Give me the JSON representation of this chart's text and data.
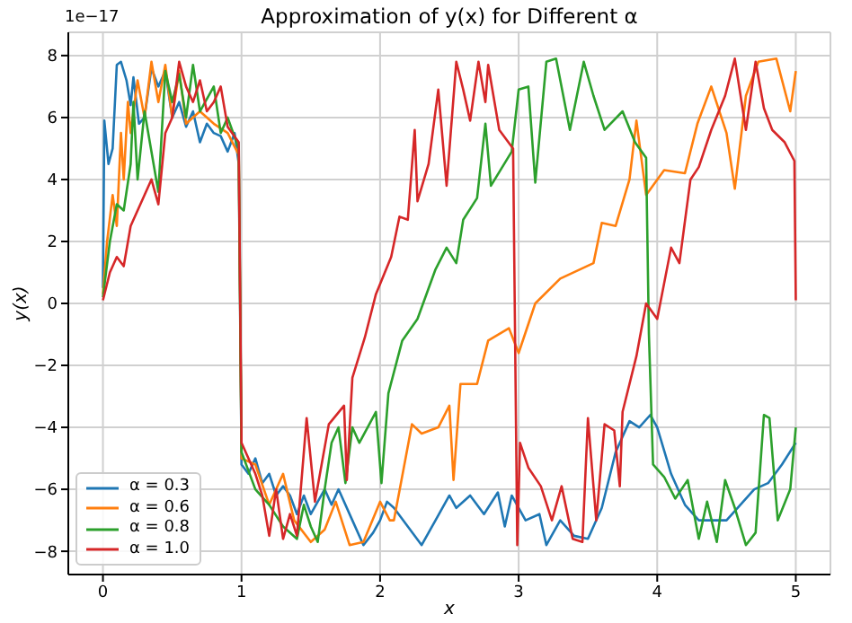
{
  "chart_data": {
    "type": "line",
    "title": "Approximation of y(x) for Different α",
    "xlabel": "x",
    "ylabel": "y(x)",
    "annotations": [
      "1e−17"
    ],
    "xlim": [
      -0.25,
      5.25
    ],
    "xticks": [
      0,
      1,
      2,
      3,
      4,
      5
    ],
    "ylim": [
      -8.75,
      8.75
    ],
    "yticks": [
      -8,
      -6,
      -4,
      -2,
      0,
      2,
      4,
      6,
      8
    ],
    "grid": true,
    "legend": "bottom left",
    "marker": "none",
    "line_style": "solid",
    "series": [
      {
        "name": "α = 0.3",
        "color": "#1f77b4",
        "x": [
          0,
          0.01,
          0.04,
          0.07,
          0.1,
          0.13,
          0.17,
          0.2,
          0.22,
          0.26,
          0.3,
          0.35,
          0.4,
          0.45,
          0.5,
          0.55,
          0.6,
          0.65,
          0.7,
          0.75,
          0.8,
          0.85,
          0.9,
          0.95,
          0.98,
          1,
          1.05,
          1.1,
          1.15,
          1.2,
          1.25,
          1.3,
          1.35,
          1.4,
          1.45,
          1.5,
          1.55,
          1.6,
          1.65,
          1.7,
          1.8,
          1.88,
          1.95,
          2,
          2.05,
          2.1,
          2.2,
          2.3,
          2.4,
          2.5,
          2.55,
          2.65,
          2.75,
          2.85,
          2.9,
          2.95,
          3.05,
          3.15,
          3.2,
          3.3,
          3.4,
          3.5,
          3.6,
          3.7,
          3.8,
          3.87,
          3.95,
          4,
          4.1,
          4.2,
          4.3,
          4.5,
          4.6,
          4.7,
          4.8,
          4.9,
          5
        ],
        "values": [
          0.5,
          5.9,
          4.5,
          5,
          7.7,
          7.8,
          7.2,
          6.4,
          7.3,
          5.8,
          6,
          7.6,
          7,
          7.5,
          6,
          6.5,
          5.7,
          6.2,
          5.2,
          5.8,
          5.5,
          5.4,
          4.9,
          5.5,
          4.5,
          -5.2,
          -5.5,
          -5,
          -5.8,
          -5.5,
          -6.2,
          -5.9,
          -6.2,
          -6.8,
          -6.2,
          -6.8,
          -6.4,
          -6,
          -6.5,
          -6,
          -7,
          -7.8,
          -7.4,
          -7,
          -6.4,
          -6.6,
          -7.2,
          -7.8,
          -7,
          -6.2,
          -6.6,
          -6.2,
          -6.8,
          -6.1,
          -7.2,
          -6.2,
          -7,
          -6.8,
          -7.8,
          -7,
          -7.5,
          -7.6,
          -6.6,
          -4.8,
          -3.8,
          -4,
          -3.6,
          -4,
          -5.5,
          -6.5,
          -7,
          -7,
          -6.5,
          -6,
          -5.8,
          -5.2,
          -4.5
        ]
      },
      {
        "name": "α = 0.6",
        "color": "#ff7f0e",
        "x": [
          0,
          0.03,
          0.07,
          0.1,
          0.13,
          0.15,
          0.18,
          0.2,
          0.25,
          0.3,
          0.35,
          0.4,
          0.45,
          0.5,
          0.55,
          0.6,
          0.7,
          0.8,
          0.9,
          0.98,
          1,
          1.1,
          1.2,
          1.3,
          1.38,
          1.5,
          1.6,
          1.68,
          1.78,
          1.88,
          2,
          2.07,
          2.1,
          2.23,
          2.3,
          2.42,
          2.5,
          2.53,
          2.58,
          2.7,
          2.78,
          2.93,
          3,
          3.12,
          3.3,
          3.54,
          3.6,
          3.7,
          3.8,
          3.85,
          3.92,
          4.05,
          4.2,
          4.29,
          4.39,
          4.5,
          4.56,
          4.64,
          4.73,
          4.86,
          4.96,
          5
        ],
        "values": [
          0.3,
          2,
          3.5,
          2.5,
          5.5,
          4,
          6.5,
          5.5,
          7.2,
          6,
          7.8,
          6.5,
          7.7,
          6,
          7.5,
          5.8,
          6.2,
          5.8,
          5.5,
          4.8,
          -5,
          -5.2,
          -6.5,
          -5.5,
          -7,
          -7.7,
          -7.3,
          -6.4,
          -7.8,
          -7.7,
          -6.4,
          -7,
          -7,
          -3.9,
          -4.2,
          -4,
          -3.3,
          -5.7,
          -2.6,
          -2.6,
          -1.2,
          -0.8,
          -1.6,
          0,
          0.8,
          1.3,
          2.6,
          2.5,
          4,
          5.9,
          3.5,
          4.3,
          4.2,
          5.8,
          7,
          5.5,
          3.7,
          6.7,
          7.8,
          7.9,
          6.2,
          7.5
        ]
      },
      {
        "name": "α = 0.8",
        "color": "#2ca02c",
        "x": [
          0,
          0.05,
          0.1,
          0.15,
          0.2,
          0.22,
          0.25,
          0.3,
          0.4,
          0.45,
          0.5,
          0.55,
          0.6,
          0.65,
          0.7,
          0.8,
          0.85,
          0.9,
          0.98,
          1,
          1.1,
          1.2,
          1.3,
          1.4,
          1.45,
          1.5,
          1.55,
          1.6,
          1.65,
          1.7,
          1.75,
          1.8,
          1.85,
          1.97,
          2.01,
          2.06,
          2.16,
          2.27,
          2.4,
          2.48,
          2.55,
          2.6,
          2.7,
          2.76,
          2.8,
          2.95,
          3,
          3.07,
          3.12,
          3.2,
          3.27,
          3.37,
          3.47,
          3.54,
          3.62,
          3.75,
          3.84,
          3.92,
          3.94,
          3.97,
          4.05,
          4.13,
          4.22,
          4.3,
          4.36,
          4.43,
          4.49,
          4.56,
          4.64,
          4.71,
          4.77,
          4.81,
          4.87,
          4.96,
          5
        ],
        "values": [
          0.2,
          2,
          3.2,
          3,
          4.5,
          6.5,
          4,
          6.2,
          3.6,
          7.5,
          6.5,
          7.4,
          6,
          7.7,
          6.2,
          7,
          5.5,
          6,
          5,
          -4.8,
          -6,
          -6.5,
          -7.2,
          -7.6,
          -6.5,
          -7.2,
          -7.7,
          -6,
          -4.5,
          -4,
          -5.8,
          -4,
          -4.5,
          -3.5,
          -5.8,
          -2.9,
          -1.2,
          -0.5,
          1.1,
          1.8,
          1.3,
          2.7,
          3.4,
          5.8,
          3.8,
          4.9,
          6.9,
          7,
          3.9,
          7.8,
          7.9,
          5.6,
          7.8,
          6.7,
          5.6,
          6.2,
          5.2,
          4.7,
          -1,
          -5.2,
          -5.6,
          -6.3,
          -5.7,
          -7.6,
          -6.4,
          -7.7,
          -5.7,
          -6.6,
          -7.8,
          -7.4,
          -3.6,
          -3.7,
          -7,
          -6,
          -4
        ]
      },
      {
        "name": "α = 1.0",
        "color": "#d62728",
        "x": [
          0,
          0.05,
          0.1,
          0.15,
          0.2,
          0.3,
          0.35,
          0.4,
          0.45,
          0.5,
          0.55,
          0.6,
          0.65,
          0.7,
          0.75,
          0.8,
          0.85,
          0.9,
          0.98,
          1,
          1.1,
          1.15,
          1.2,
          1.25,
          1.3,
          1.35,
          1.4,
          1.47,
          1.53,
          1.63,
          1.74,
          1.76,
          1.8,
          1.89,
          1.97,
          2.08,
          2.14,
          2.2,
          2.25,
          2.27,
          2.35,
          2.42,
          2.48,
          2.55,
          2.6,
          2.65,
          2.71,
          2.76,
          2.78,
          2.86,
          2.96,
          2.99,
          3.01,
          3.07,
          3.16,
          3.24,
          3.31,
          3.39,
          3.46,
          3.5,
          3.56,
          3.62,
          3.69,
          3.73,
          3.75,
          3.85,
          3.92,
          4,
          4.1,
          4.16,
          4.24,
          4.3,
          4.39,
          4.49,
          4.56,
          4.64,
          4.71,
          4.77,
          4.83,
          4.92,
          4.99,
          5
        ],
        "values": [
          0.1,
          1,
          1.5,
          1.2,
          2.5,
          3.5,
          4,
          3.2,
          5.5,
          6,
          7.8,
          7,
          6.5,
          7.2,
          6.2,
          6.5,
          7,
          5.7,
          5.2,
          -4.5,
          -5.5,
          -6.2,
          -7.5,
          -6,
          -7.6,
          -6.8,
          -7.5,
          -3.7,
          -6.4,
          -3.9,
          -3.3,
          -5.7,
          -2.4,
          -1.1,
          0.3,
          1.5,
          2.8,
          2.7,
          5.6,
          3.3,
          4.5,
          6.9,
          3.8,
          7.8,
          6.9,
          5.9,
          7.8,
          6.5,
          7.7,
          5.6,
          5,
          -7.8,
          -4.5,
          -5.3,
          -5.9,
          -7,
          -5.9,
          -7.6,
          -7.7,
          -3.7,
          -7,
          -3.9,
          -4.1,
          -5.9,
          -3.5,
          -1.7,
          0,
          -0.5,
          1.8,
          1.3,
          4,
          4.4,
          5.6,
          6.7,
          7.9,
          5.6,
          7.8,
          6.3,
          5.6,
          5.2,
          4.6,
          0.1
        ]
      }
    ]
  }
}
